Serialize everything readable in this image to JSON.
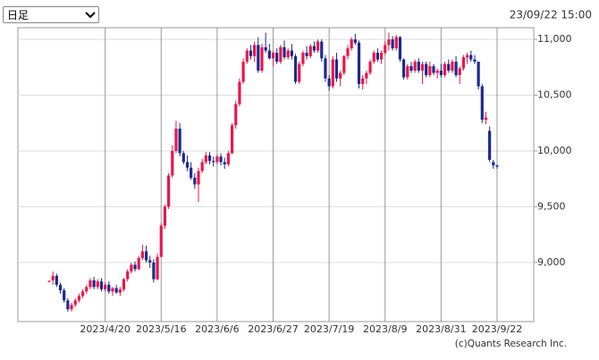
{
  "header": {
    "period": "日足",
    "timestamp": "23/09/22 15:00"
  },
  "footer": {
    "copyright": "(c)Quants Research Inc."
  },
  "chart_data": {
    "type": "candlestick",
    "up_color": "#e8174a",
    "down_color": "#1c2a8c",
    "grid": true,
    "categories": [
      null,
      null,
      null,
      null,
      null,
      null,
      null,
      null,
      null,
      null,
      null,
      null,
      null,
      null,
      null,
      "2023/4/20",
      null,
      null,
      null,
      null,
      null,
      null,
      null,
      null,
      null,
      null,
      null,
      null,
      null,
      null,
      "2023/5/16",
      null,
      null,
      null,
      null,
      null,
      null,
      null,
      null,
      null,
      null,
      null,
      null,
      null,
      null,
      "2023/6/6",
      null,
      null,
      null,
      null,
      null,
      null,
      null,
      null,
      null,
      null,
      null,
      null,
      null,
      null,
      "2023/6/27",
      null,
      null,
      null,
      null,
      null,
      null,
      null,
      null,
      null,
      null,
      null,
      null,
      null,
      null,
      "2023/7/19",
      null,
      null,
      null,
      null,
      null,
      null,
      null,
      null,
      null,
      null,
      null,
      null,
      null,
      null,
      "2023/8/9",
      null,
      null,
      null,
      null,
      null,
      null,
      null,
      null,
      null,
      null,
      null,
      null,
      null,
      null,
      "2023/8/31",
      null,
      null,
      null,
      null,
      null,
      null,
      null,
      null,
      null,
      null,
      null,
      null,
      null,
      null,
      "2023/9/22"
    ],
    "ylim": [
      8470,
      11105
    ],
    "yticks": [
      {
        "value": 9000,
        "label": "9,000"
      },
      {
        "value": 9500,
        "label": "9,500"
      },
      {
        "value": 10000,
        "label": "10,000"
      },
      {
        "value": 10500,
        "label": "10,500"
      },
      {
        "value": 11000,
        "label": "11,000"
      }
    ],
    "ohlc": [
      [
        8830,
        8840,
        8820,
        8835
      ],
      [
        8840,
        8920,
        8800,
        8880
      ],
      [
        8880,
        8900,
        8780,
        8800
      ],
      [
        8800,
        8820,
        8720,
        8750
      ],
      [
        8750,
        8770,
        8640,
        8660
      ],
      [
        8660,
        8680,
        8560,
        8580
      ],
      [
        8580,
        8640,
        8560,
        8620
      ],
      [
        8620,
        8680,
        8600,
        8660
      ],
      [
        8660,
        8720,
        8640,
        8700
      ],
      [
        8700,
        8760,
        8680,
        8740
      ],
      [
        8740,
        8800,
        8720,
        8780
      ],
      [
        8780,
        8860,
        8760,
        8840
      ],
      [
        8840,
        8870,
        8760,
        8780
      ],
      [
        8780,
        8850,
        8760,
        8830
      ],
      [
        8830,
        8860,
        8740,
        8760
      ],
      [
        8760,
        8820,
        8740,
        8800
      ],
      [
        8800,
        8830,
        8720,
        8740
      ],
      [
        8740,
        8780,
        8700,
        8770
      ],
      [
        8770,
        8800,
        8720,
        8730
      ],
      [
        8730,
        8780,
        8700,
        8760
      ],
      [
        8760,
        8860,
        8740,
        8850
      ],
      [
        8850,
        8940,
        8830,
        8920
      ],
      [
        8920,
        9000,
        8900,
        8980
      ],
      [
        8980,
        9010,
        8920,
        8940
      ],
      [
        8940,
        9060,
        8930,
        9040
      ],
      [
        9040,
        9160,
        9020,
        9100
      ],
      [
        9100,
        9150,
        9000,
        9020
      ],
      [
        9020,
        9060,
        8950,
        9000
      ],
      [
        9000,
        9030,
        8820,
        8850
      ],
      [
        8850,
        9080,
        8840,
        9050
      ],
      [
        9050,
        9350,
        9050,
        9330
      ],
      [
        9330,
        9520,
        9300,
        9500
      ],
      [
        9500,
        9800,
        9480,
        9780
      ],
      [
        9780,
        10050,
        9760,
        10000
      ],
      [
        10000,
        10270,
        9980,
        10200
      ],
      [
        10200,
        10250,
        9950,
        9980
      ],
      [
        9980,
        10000,
        9880,
        9900
      ],
      [
        9900,
        9960,
        9820,
        9850
      ],
      [
        9850,
        9900,
        9740,
        9760
      ],
      [
        9760,
        9800,
        9660,
        9700
      ],
      [
        9700,
        9850,
        9540,
        9820
      ],
      [
        9820,
        9930,
        9800,
        9900
      ],
      [
        9900,
        9990,
        9880,
        9960
      ],
      [
        9960,
        9990,
        9880,
        9910
      ],
      [
        9910,
        9950,
        9860,
        9900
      ],
      [
        9900,
        9970,
        9880,
        9950
      ],
      [
        9950,
        9980,
        9870,
        9900
      ],
      [
        9900,
        9940,
        9840,
        9880
      ],
      [
        9880,
        10000,
        9860,
        9980
      ],
      [
        9980,
        10250,
        9970,
        10230
      ],
      [
        10230,
        10450,
        10200,
        10420
      ],
      [
        10420,
        10650,
        10400,
        10620
      ],
      [
        10620,
        10830,
        10600,
        10800
      ],
      [
        10800,
        10920,
        10780,
        10900
      ],
      [
        10900,
        10950,
        10820,
        10850
      ],
      [
        10850,
        10980,
        10800,
        10950
      ],
      [
        10950,
        11020,
        10700,
        10720
      ],
      [
        10720,
        10960,
        10700,
        10930
      ],
      [
        10930,
        11060,
        10880,
        10900
      ],
      [
        10900,
        10960,
        10820,
        10830
      ],
      [
        10830,
        10900,
        10760,
        10880
      ],
      [
        10880,
        10920,
        10780,
        10800
      ],
      [
        10800,
        10950,
        10780,
        10930
      ],
      [
        10930,
        10990,
        10820,
        10840
      ],
      [
        10840,
        10920,
        10820,
        10900
      ],
      [
        10900,
        10960,
        10820,
        10850
      ],
      [
        10850,
        10870,
        10600,
        10620
      ],
      [
        10620,
        10800,
        10600,
        10780
      ],
      [
        10780,
        10900,
        10760,
        10880
      ],
      [
        10880,
        10940,
        10820,
        10850
      ],
      [
        10850,
        10960,
        10830,
        10940
      ],
      [
        10940,
        10980,
        10880,
        10900
      ],
      [
        10900,
        11000,
        10880,
        10980
      ],
      [
        10980,
        11000,
        10800,
        10830
      ],
      [
        10830,
        10860,
        10620,
        10650
      ],
      [
        10650,
        10680,
        10540,
        10580
      ],
      [
        10580,
        10850,
        10560,
        10820
      ],
      [
        10820,
        10880,
        10620,
        10650
      ],
      [
        10650,
        10720,
        10580,
        10700
      ],
      [
        10700,
        10860,
        10680,
        10850
      ],
      [
        10850,
        10950,
        10820,
        10920
      ],
      [
        10920,
        11020,
        10900,
        11000
      ],
      [
        11000,
        11050,
        10950,
        10970
      ],
      [
        10970,
        10990,
        10560,
        10600
      ],
      [
        10600,
        10680,
        10550,
        10650
      ],
      [
        10650,
        10720,
        10600,
        10700
      ],
      [
        10700,
        10820,
        10680,
        10800
      ],
      [
        10800,
        10900,
        10780,
        10880
      ],
      [
        10880,
        10920,
        10800,
        10820
      ],
      [
        10820,
        10900,
        10780,
        10880
      ],
      [
        10880,
        10980,
        10860,
        10950
      ],
      [
        10950,
        11060,
        10900,
        11000
      ],
      [
        11000,
        11030,
        10900,
        10920
      ],
      [
        10920,
        11040,
        10900,
        11020
      ],
      [
        11020,
        11030,
        10800,
        10820
      ],
      [
        10820,
        10830,
        10640,
        10660
      ],
      [
        10660,
        10780,
        10640,
        10760
      ],
      [
        10760,
        10800,
        10700,
        10720
      ],
      [
        10720,
        10820,
        10700,
        10800
      ],
      [
        10800,
        10830,
        10700,
        10720
      ],
      [
        10720,
        10800,
        10600,
        10780
      ],
      [
        10780,
        10800,
        10660,
        10680
      ],
      [
        10680,
        10800,
        10660,
        10760
      ],
      [
        10760,
        10780,
        10680,
        10700
      ],
      [
        10700,
        10740,
        10650,
        10720
      ],
      [
        10720,
        10780,
        10660,
        10680
      ],
      [
        10680,
        10800,
        10660,
        10780
      ],
      [
        10780,
        10820,
        10700,
        10720
      ],
      [
        10720,
        10820,
        10700,
        10800
      ],
      [
        10800,
        10850,
        10660,
        10680
      ],
      [
        10680,
        10760,
        10600,
        10740
      ],
      [
        10740,
        10860,
        10720,
        10840
      ],
      [
        10840,
        10880,
        10780,
        10860
      ],
      [
        10860,
        10900,
        10800,
        10820
      ],
      [
        10820,
        10860,
        10780,
        10800
      ],
      [
        10800,
        10800,
        10550,
        10580
      ],
      [
        10580,
        10600,
        10250,
        10280
      ],
      [
        10280,
        10350,
        10240,
        10300
      ],
      [
        10180,
        10220,
        9900,
        9920
      ],
      [
        9900,
        9920,
        9840,
        9870
      ],
      [
        9870,
        9880,
        9840,
        9860
      ]
    ]
  }
}
